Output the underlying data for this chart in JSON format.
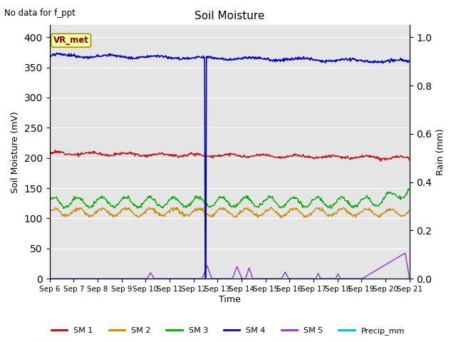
{
  "title": "Soil Moisture",
  "xlabel": "Time",
  "ylabel_left": "Soil Moisture (mV)",
  "ylabel_right": "Rain (mm)",
  "no_data_text": "No data for f_ppt",
  "vr_label": "VR_met",
  "ylim_left": [
    0,
    420
  ],
  "ylim_right": [
    0,
    1.05
  ],
  "yticks_left": [
    0,
    50,
    100,
    150,
    200,
    250,
    300,
    350,
    400
  ],
  "yticks_right": [
    0.0,
    0.2,
    0.4,
    0.6,
    0.8,
    1.0
  ],
  "xtick_labels": [
    "Sep 6",
    "Sep 7",
    "Sep 8",
    "Sep 9",
    "Sep 10",
    "Sep 11",
    "Sep 12",
    "Sep 13",
    "Sep 14",
    "Sep 15",
    "Sep 16",
    "Sep 17",
    "Sep 18",
    "Sep 19",
    "Sep 20",
    "Sep 21"
  ],
  "background_color": "#e5e5e5",
  "line_colors": {
    "SM1": "#cc0000",
    "SM2": "#cc8800",
    "SM3": "#00aa00",
    "SM4": "#0000cc",
    "SM5": "#9933cc",
    "Precip": "#00bbbb"
  },
  "num_points": 600,
  "days": 15,
  "spike_day": 6.5
}
